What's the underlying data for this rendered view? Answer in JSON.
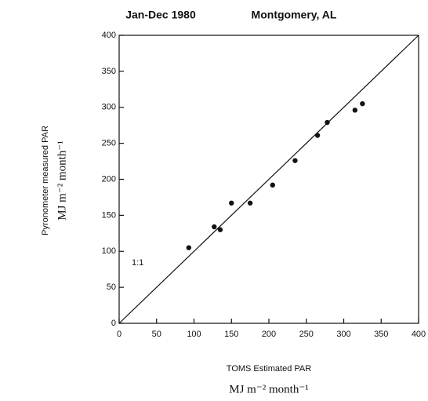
{
  "chart_data": {
    "type": "scatter",
    "title": "Jan-Dec 1980",
    "subtitle": "Montgomery, AL",
    "x_label": "TOMS Estimated PAR",
    "x_units": "MJ m⁻² month⁻¹",
    "y_label": "Pyronometer measured PAR",
    "y_units": "MJ m⁻² month⁻¹",
    "annotation": "1:1",
    "x": [
      93,
      127,
      135,
      150,
      175,
      205,
      235,
      265,
      278,
      315,
      325
    ],
    "values": [
      105,
      134,
      130,
      167,
      167,
      192,
      226,
      261,
      279,
      296,
      305
    ],
    "color": "#111111",
    "xlim": [
      0,
      400
    ],
    "ylim": [
      0,
      400
    ],
    "xticks": [
      0,
      50,
      100,
      150,
      200,
      250,
      300,
      350,
      400
    ],
    "yticks": [
      0,
      50,
      100,
      150,
      200,
      250,
      300,
      350,
      400
    ]
  }
}
